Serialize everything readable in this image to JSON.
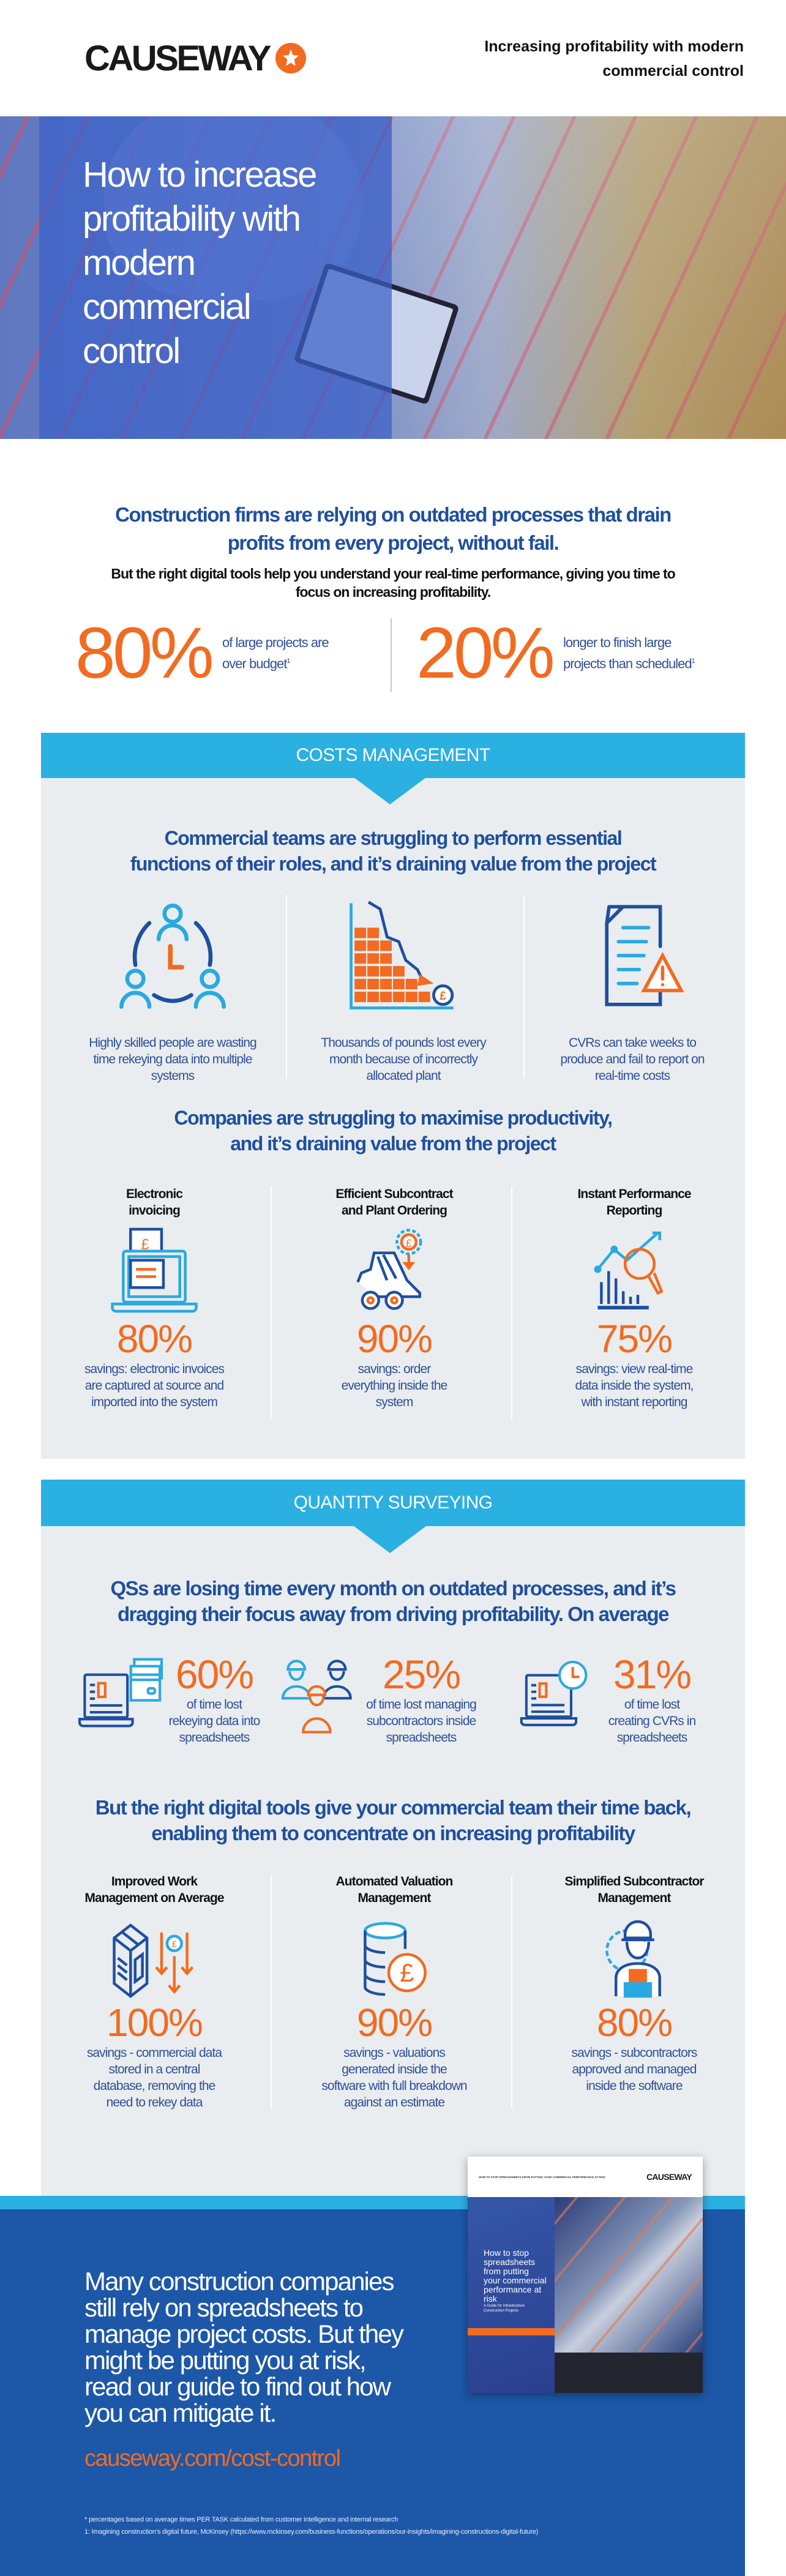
{
  "colors": {
    "brand_orange": "#f26b21",
    "heading_blue": "#1f4f9f",
    "banner_blue": "#2bb0e2",
    "panel_gray": "#e9edef",
    "footer_blue": "#1d57a8"
  },
  "header": {
    "logo_text": "CAUSEWAY",
    "logo_icon": "star-in-circle-icon",
    "title": "Increasing profitability with modern\ncommercial control"
  },
  "hero": {
    "title": "How to increase\nprofitability with\nmodern\ncommercial\ncontrol"
  },
  "intro": {
    "headline": "Construction firms are relying on outdated processes that drain\nprofits from every project, without fail.",
    "subtext": "But the right digital tools help you understand your real-time performance, giving you time to\nfocus on increasing profitability.",
    "stats": [
      {
        "value": "80%",
        "text": "of large projects are\nover budget",
        "footnote": "1"
      },
      {
        "value": "20%",
        "text": "longer to finish large\nprojects than scheduled",
        "footnote": "1"
      }
    ]
  },
  "costs": {
    "banner": "COSTS MANAGEMENT",
    "headline1": "Commercial teams are struggling to perform essential\nfunctions of their roles, and it’s draining value from the project",
    "problems": [
      {
        "icon": "team-clock-icon",
        "caption": "Highly skilled people are wasting\ntime rekeying data into multiple\nsystems"
      },
      {
        "icon": "falling-bricks-pound-icon",
        "caption": "Thousands of pounds lost every\nmonth because of incorrectly\nallocated plant"
      },
      {
        "icon": "document-warning-icon",
        "caption": "CVRs can take weeks to\nproduce and fail to report on\nreal-time costs"
      }
    ],
    "headline2": "Companies are struggling to maximise productivity,\nand it’s draining value from the project",
    "solutions": [
      {
        "icon": "laptop-invoice-icon",
        "title": "Electronic\ninvoicing",
        "value": "80%",
        "caption": "savings: electronic invoices\nare captured at source and\nimported into the system"
      },
      {
        "icon": "loader-gear-pound-icon",
        "title": "Efficient Subcontract\nand Plant Ordering",
        "value": "90%",
        "caption": "savings: order\neverything inside the\nsystem"
      },
      {
        "icon": "chart-magnifier-icon",
        "title": "Instant Performance\nReporting",
        "value": "75%",
        "caption": "savings: view real-time\ndata inside the system,\nwith instant reporting"
      }
    ]
  },
  "qs": {
    "banner": "QUANTITY SURVEYING",
    "headline1": "QSs are losing time every month on outdated processes, and it’s\ndragging their focus away from driving profitability. On average",
    "stats": [
      {
        "icon": "laptop-cards-icon",
        "value": "60%",
        "caption": "of time lost\nrekeying data into\nspreadsheets"
      },
      {
        "icon": "workers-hardhat-icon",
        "value": "25%",
        "caption": "of time lost managing\nsubcontractors inside\nspreadsheets"
      },
      {
        "icon": "laptop-clock-icon",
        "value": "31%",
        "caption": "of time lost\ncreating CVRs in\nspreadsheets"
      }
    ],
    "headline2": "But the right digital tools give your commercial team their time back,\nenabling them to concentrate on increasing profitability",
    "solutions": [
      {
        "icon": "box-arrows-pound-icon",
        "title": "Improved Work\nManagement on Average",
        "value": "100%",
        "caption": "savings - commercial data\nstored in a central\ndatabase, removing the\nneed to rekey data"
      },
      {
        "icon": "database-pound-icon",
        "title": "Automated Valuation\nManagement",
        "value": "90%",
        "caption": "savings - valuations\ngenerated inside the\nsoftware with full breakdown\nagainst an estimate"
      },
      {
        "icon": "worker-gear-icon",
        "title": "Simplified Subcontractor\nManagement",
        "value": "80%",
        "caption": "savings - subcontractors\napproved and managed\ninside the software"
      }
    ]
  },
  "footer": {
    "cta": "Many construction companies\nstill rely on spreadsheets to\nmanage project costs. But they\nmight be putting you at risk,\nread our guide to find out how\nyou can mitigate it.",
    "link": "causeway.com/cost-control",
    "book": {
      "header_text": "HOW TO STOP SPREADSHEETS FROM PUTTING YOUR COMMERCIAL PERFORMANCE AT RISK",
      "logo_text": "CAUSEWAY",
      "title": "How to stop\nspreadsheets\nfrom putting\nyour commercial\nperformance at\nrisk",
      "subtitle": "A Guide for Infrastructure\nConstruction Projects"
    },
    "footnotes": [
      "* percentages based on average times PER TASK calculated from customer intelligence and internal research",
      "1: Imagining construction’s digital future, McKinsey (https://www.mckinsey.com/business-functions/operations/our-insights/imagining-constructions-digital-future)"
    ]
  }
}
